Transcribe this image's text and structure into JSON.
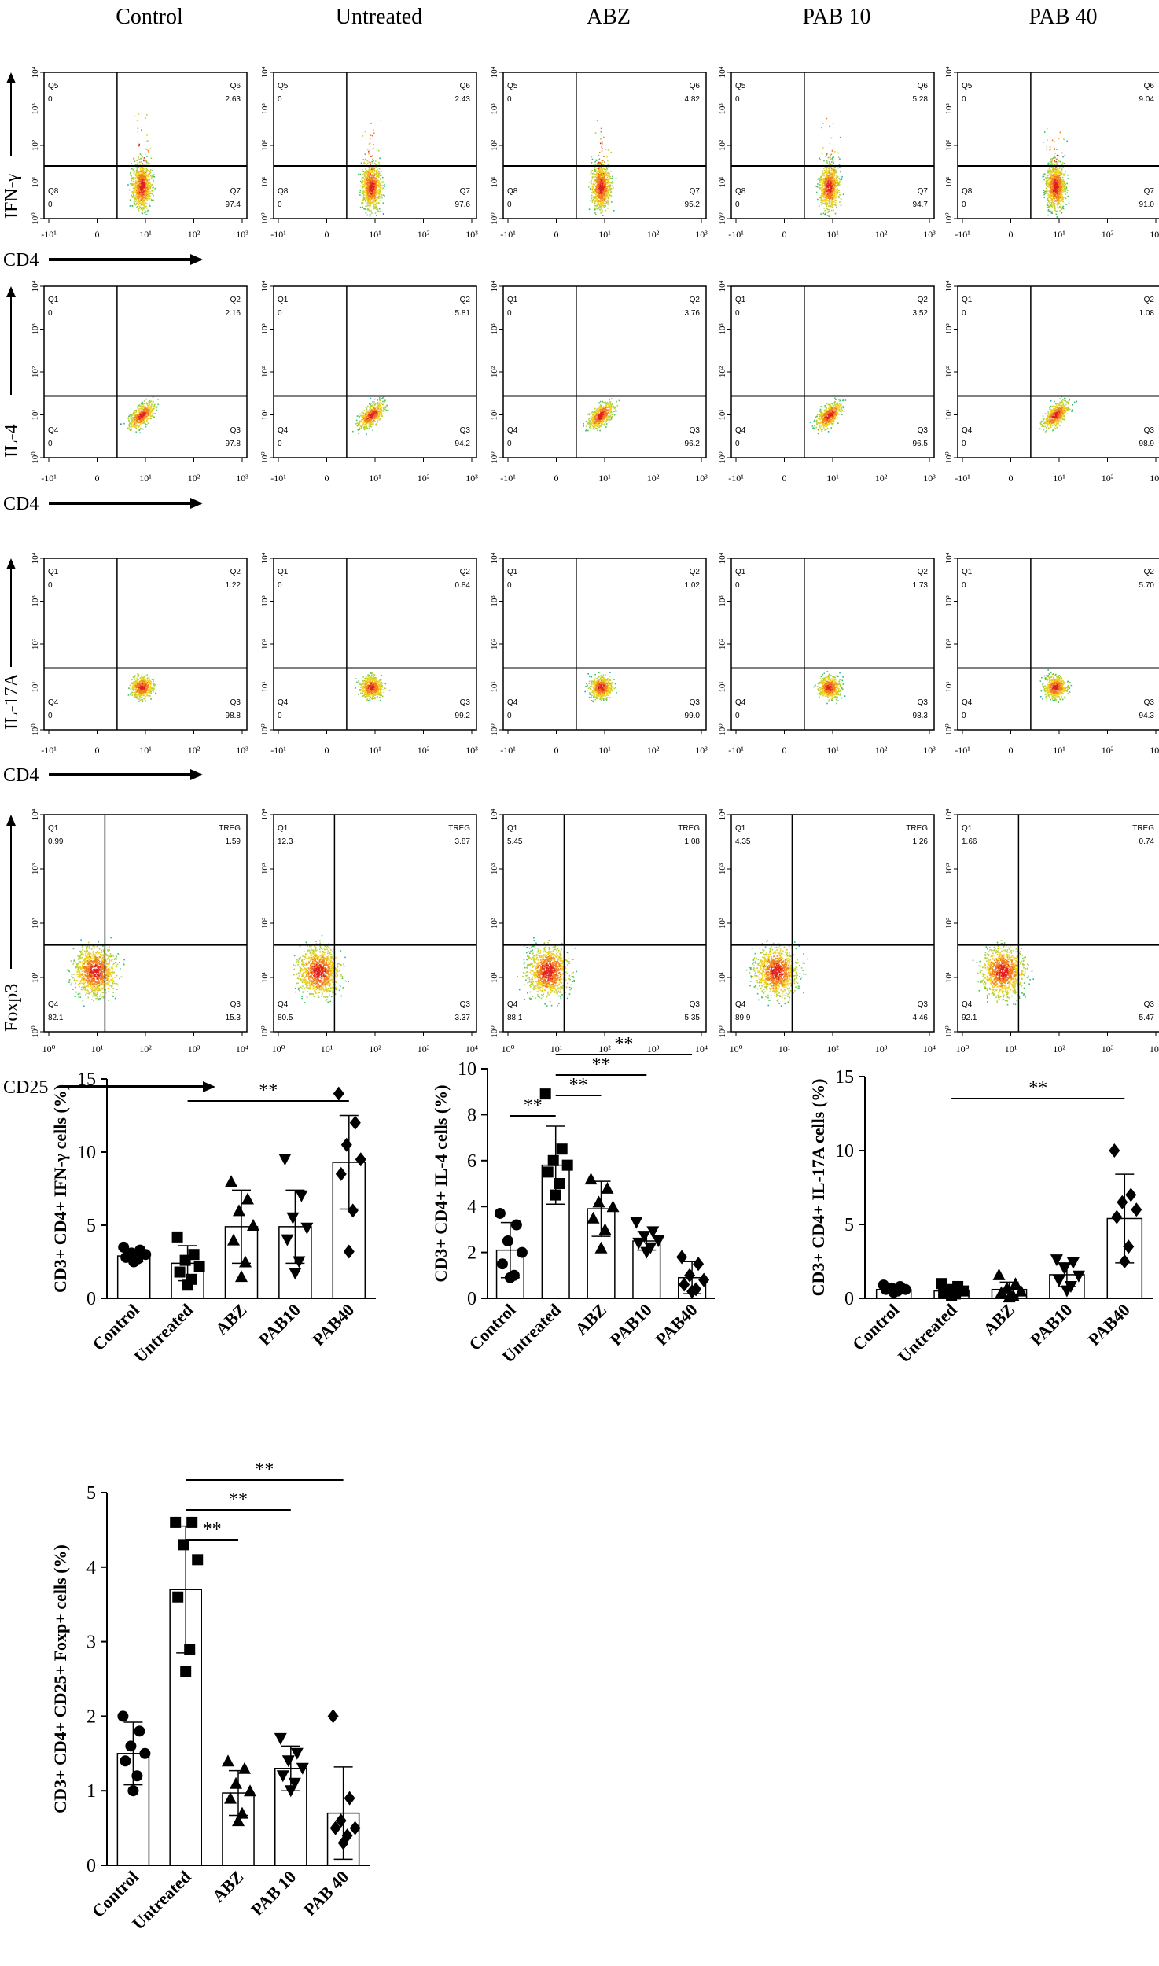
{
  "columns": [
    "Control",
    "Untreated",
    "ABZ",
    "PAB 10",
    "PAB 40"
  ],
  "flow_rows": [
    {
      "y_label": "IFN-γ",
      "x_label": "CD4",
      "x_ticks": [
        "-10¹",
        "0",
        "10¹",
        "10²",
        "10³"
      ],
      "y_ticks": [
        "10⁰",
        "10¹",
        "10²",
        "10³",
        "10⁴"
      ],
      "quadrant_names": [
        "Q5",
        "Q6",
        "Q8",
        "Q7"
      ],
      "values": [
        [
          "0",
          "2.63",
          "0",
          "97.4"
        ],
        [
          "0",
          "2.43",
          "0",
          "97.6"
        ],
        [
          "0",
          "4.82",
          "0",
          "95.2"
        ],
        [
          "0",
          "5.28",
          "0",
          "94.7"
        ],
        [
          "0",
          "9.04",
          "0",
          "91.0"
        ]
      ]
    },
    {
      "y_label": "IL-4",
      "x_label": "CD4",
      "x_ticks": [
        "-10¹",
        "0",
        "10¹",
        "10²",
        "10³"
      ],
      "y_ticks": [
        "10⁰",
        "10¹",
        "10²",
        "10³",
        "10⁴"
      ],
      "quadrant_names": [
        "Q1",
        "Q2",
        "Q4",
        "Q3"
      ],
      "values": [
        [
          "0",
          "2.16",
          "0",
          "97.8"
        ],
        [
          "0",
          "5.81",
          "0",
          "94.2"
        ],
        [
          "0",
          "3.76",
          "0",
          "96.2"
        ],
        [
          "0",
          "3.52",
          "0",
          "96.5"
        ],
        [
          "0",
          "1.08",
          "0",
          "98.9"
        ]
      ]
    },
    {
      "y_label": "IL-17A",
      "x_label": "CD4",
      "x_ticks": [
        "-10¹",
        "0",
        "10¹",
        "10²",
        "10³"
      ],
      "y_ticks": [
        "10⁰",
        "10¹",
        "10²",
        "10³",
        "10⁴"
      ],
      "quadrant_names": [
        "Q1",
        "Q2",
        "Q4",
        "Q3"
      ],
      "values": [
        [
          "0",
          "1.22",
          "0",
          "98.8"
        ],
        [
          "0",
          "0.84",
          "0",
          "99.2"
        ],
        [
          "0",
          "1.02",
          "0",
          "99.0"
        ],
        [
          "0",
          "1.73",
          "0",
          "98.3"
        ],
        [
          "0",
          "5.70",
          "0",
          "94.3"
        ]
      ]
    },
    {
      "y_label": "Foxp3",
      "x_label": "CD25",
      "x_ticks": [
        "10⁰",
        "10¹",
        "10²",
        "10³",
        "10⁴"
      ],
      "y_ticks": [
        "10⁰",
        "10¹",
        "10²",
        "10³",
        "10⁴"
      ],
      "quadrant_names": [
        "Q1",
        "TREG",
        "Q4",
        "Q3"
      ],
      "values": [
        [
          "0.99",
          "1.59",
          "82.1",
          "15.3"
        ],
        [
          "12.3",
          "3.87",
          "80.5",
          "3.37"
        ],
        [
          "5.45",
          "1.08",
          "88.1",
          "5.35"
        ],
        [
          "4.35",
          "1.26",
          "89.9",
          "4.46"
        ],
        [
          "1.66",
          "0.74",
          "92.1",
          "5.47"
        ]
      ]
    }
  ],
  "chart_data": [
    {
      "type": "bar",
      "ylabel": "CD3+ CD4+ IFN-γ cells (%)",
      "ylim": [
        0,
        15
      ],
      "yticks": [
        "0",
        "5",
        "10",
        "15"
      ],
      "categories": [
        "Control",
        "Untreated",
        "ABZ",
        "PAB10",
        "PAB40"
      ],
      "means": [
        2.9,
        2.4,
        4.9,
        4.9,
        9.3
      ],
      "sd": [
        0.4,
        1.2,
        2.5,
        2.5,
        3.2
      ],
      "points": [
        [
          2.5,
          2.7,
          2.8,
          3.0,
          3.1,
          3.3,
          3.5
        ],
        [
          0.9,
          1.3,
          1.8,
          2.2,
          2.6,
          3.0,
          4.2
        ],
        [
          1.5,
          2.5,
          4.0,
          5.0,
          6.0,
          6.8,
          8.0
        ],
        [
          1.7,
          2.5,
          4.0,
          4.8,
          5.5,
          7.0,
          9.5
        ],
        [
          3.2,
          6.0,
          8.5,
          9.5,
          10.5,
          12.0,
          14.0
        ]
      ],
      "markers": [
        "circle",
        "square",
        "triangle-up",
        "triangle-down",
        "diamond"
      ],
      "significance": [
        {
          "from": 1,
          "to": 4,
          "label": "**"
        }
      ]
    },
    {
      "type": "bar",
      "ylabel": "CD3+ CD4+ IL-4 cells (%)",
      "ylim": [
        0,
        10
      ],
      "yticks": [
        "0",
        "2",
        "4",
        "6",
        "8",
        "10"
      ],
      "categories": [
        "Control",
        "Untreated",
        "ABZ",
        "PAB10",
        "PAB40"
      ],
      "means": [
        2.1,
        5.8,
        3.9,
        2.5,
        0.9
      ],
      "sd": [
        1.2,
        1.7,
        1.2,
        0.4,
        0.7
      ],
      "points": [
        [
          0.9,
          1.0,
          1.5,
          2.0,
          2.5,
          3.2,
          3.7
        ],
        [
          4.5,
          5.0,
          5.5,
          5.8,
          6.0,
          6.5,
          8.9
        ],
        [
          2.2,
          3.0,
          3.5,
          4.0,
          4.2,
          4.8,
          5.2
        ],
        [
          2.0,
          2.2,
          2.4,
          2.5,
          2.7,
          2.9,
          3.3
        ],
        [
          0.3,
          0.4,
          0.6,
          0.8,
          1.0,
          1.5,
          1.8
        ]
      ],
      "markers": [
        "circle",
        "square",
        "triangle-up",
        "triangle-down",
        "diamond"
      ],
      "significance": [
        {
          "from": 0,
          "to": 1,
          "label": "**"
        },
        {
          "from": 1,
          "to": 2,
          "label": "**"
        },
        {
          "from": 1,
          "to": 3,
          "label": "**"
        },
        {
          "from": 1,
          "to": 4,
          "label": "**"
        }
      ]
    },
    {
      "type": "bar",
      "ylabel": "CD3+ CD4+ IL-17A cells (%)",
      "ylim": [
        0,
        15
      ],
      "yticks": [
        "0",
        "5",
        "10",
        "15"
      ],
      "categories": [
        "Control",
        "Untreated",
        "ABZ",
        "PAB10",
        "PAB40"
      ],
      "means": [
        0.6,
        0.5,
        0.6,
        1.6,
        5.4
      ],
      "sd": [
        0.2,
        0.3,
        0.5,
        0.8,
        3.0
      ],
      "points": [
        [
          0.4,
          0.5,
          0.6,
          0.6,
          0.7,
          0.8,
          0.9
        ],
        [
          0.2,
          0.3,
          0.4,
          0.5,
          0.6,
          0.8,
          1.0
        ],
        [
          0.1,
          0.2,
          0.4,
          0.5,
          0.7,
          1.0,
          1.6
        ],
        [
          0.5,
          0.8,
          1.2,
          1.5,
          2.0,
          2.4,
          2.6
        ],
        [
          2.5,
          3.5,
          5.5,
          6.0,
          6.5,
          7.0,
          10.0
        ]
      ],
      "markers": [
        "circle",
        "square",
        "triangle-up",
        "triangle-down",
        "diamond"
      ],
      "significance": [
        {
          "from": 1,
          "to": 4,
          "label": "**"
        }
      ]
    },
    {
      "type": "bar",
      "ylabel": "CD3+ CD4+ CD25+ Foxp+ cells (%)",
      "ylim": [
        0,
        5
      ],
      "yticks": [
        "0",
        "1",
        "2",
        "3",
        "4",
        "5"
      ],
      "categories": [
        "Control",
        "Untreated",
        "ABZ",
        "PAB 10",
        "PAB 40"
      ],
      "means": [
        1.5,
        3.7,
        0.97,
        1.3,
        0.7
      ],
      "sd": [
        0.42,
        0.85,
        0.3,
        0.3,
        0.62
      ],
      "points": [
        [
          1.0,
          1.2,
          1.4,
          1.5,
          1.6,
          1.8,
          2.0
        ],
        [
          2.6,
          2.9,
          3.6,
          4.1,
          4.3,
          4.6,
          4.6
        ],
        [
          0.6,
          0.7,
          0.9,
          1.0,
          1.1,
          1.3,
          1.4
        ],
        [
          1.0,
          1.1,
          1.2,
          1.3,
          1.4,
          1.5,
          1.7
        ],
        [
          0.3,
          0.4,
          0.5,
          0.5,
          0.6,
          0.9,
          2.0
        ]
      ],
      "markers": [
        "circle",
        "square",
        "triangle-up",
        "triangle-down",
        "diamond"
      ],
      "significance": [
        {
          "from": 1,
          "to": 2,
          "label": "**"
        },
        {
          "from": 1,
          "to": 3,
          "label": "**"
        },
        {
          "from": 1,
          "to": 4,
          "label": "**"
        }
      ]
    }
  ]
}
